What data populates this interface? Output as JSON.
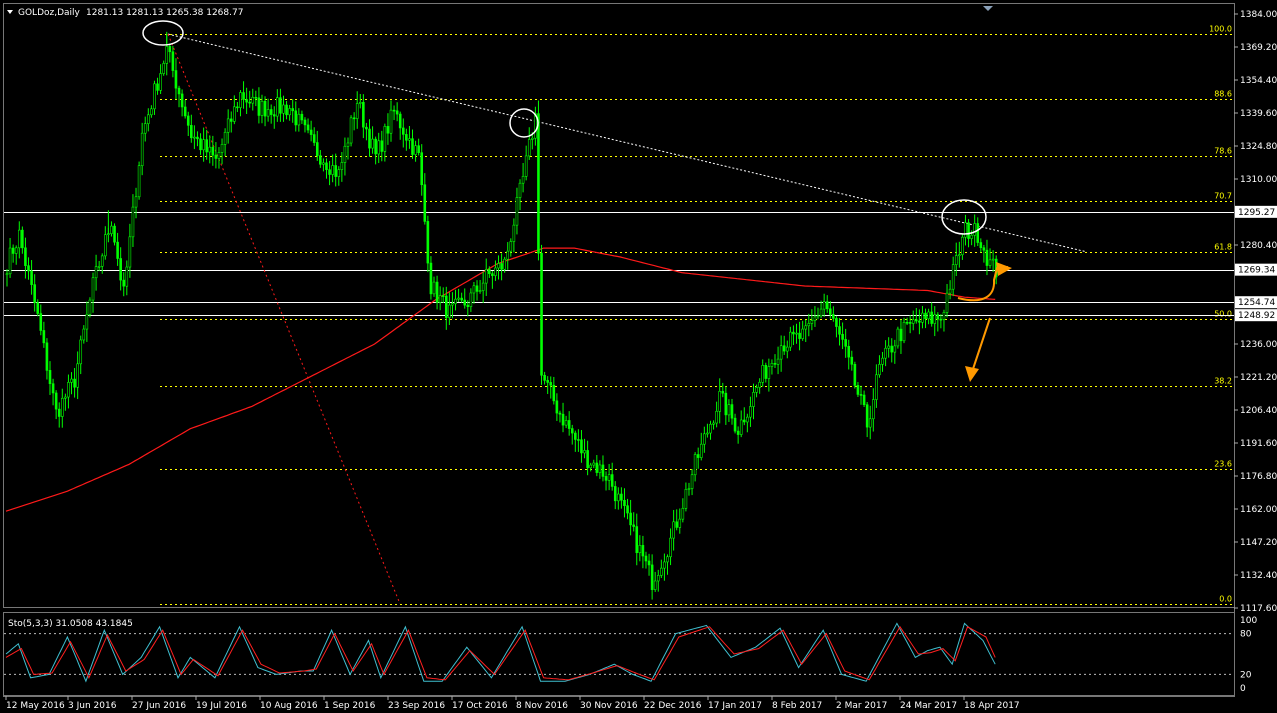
{
  "header": {
    "symbol_label": "GOLDoz,Daily",
    "ohlc": "1281.13 1281.13 1265.38 1268.77",
    "indicator_label": "Sto(5,3,3) 31.0508 43.1845"
  },
  "colors": {
    "background": "#000000",
    "candle": "#00ff00",
    "ma": "#ff1a1a",
    "fib": "#ffff00",
    "trendline": "#ffffff",
    "stoch_main": "#3fbfd0",
    "stoch_signal": "#ff2020",
    "annotation": "#ff9900"
  },
  "chart_data": [
    {
      "type": "line",
      "ylim": [
        1117.6,
        1384.0
      ],
      "y_ticks": [
        {
          "value": 1384.0,
          "label": "1384.00"
        },
        {
          "value": 1369.2,
          "label": "1369.20"
        },
        {
          "value": 1354.4,
          "label": "1354.40"
        },
        {
          "value": 1339.6,
          "label": "1339.60"
        },
        {
          "value": 1324.8,
          "label": "1324.80"
        },
        {
          "value": 1310.0,
          "label": "1310.00"
        },
        {
          "value": 1280.4,
          "label": "1280.40"
        },
        {
          "value": 1236.0,
          "label": "1236.00"
        },
        {
          "value": 1221.2,
          "label": "1221.20"
        },
        {
          "value": 1206.4,
          "label": "1206.40"
        },
        {
          "value": 1191.6,
          "label": "1191.60"
        },
        {
          "value": 1176.8,
          "label": "1176.80"
        },
        {
          "value": 1162.0,
          "label": "1162.00"
        },
        {
          "value": 1147.2,
          "label": "1147.20"
        },
        {
          "value": 1132.4,
          "label": "1132.40"
        },
        {
          "value": 1117.6,
          "label": "1117.60"
        }
      ],
      "x_ticks": [
        "12 May 2016",
        "3 Jun 2016",
        "27 Jun 2016",
        "19 Jul 2016",
        "10 Aug 2016",
        "1 Sep 2016",
        "23 Sep 2016",
        "17 Oct 2016",
        "8 Nov 2016",
        "30 Nov 2016",
        "22 Dec 2016",
        "17 Jan 2017",
        "8 Feb 2017",
        "2 Mar 2017",
        "24 Mar 2017",
        "18 Apr 2017"
      ],
      "fibonacci_levels": [
        {
          "label": "100.0",
          "value": 1375.0
        },
        {
          "label": "88.6",
          "value": 1345.9
        },
        {
          "label": "78.6",
          "value": 1320.3
        },
        {
          "label": "70.7",
          "value": 1300.1
        },
        {
          "label": "61.8",
          "value": 1277.4
        },
        {
          "label": "50.0",
          "value": 1247.2
        },
        {
          "label": "38.2",
          "value": 1217.1
        },
        {
          "label": "23.6",
          "value": 1179.8
        },
        {
          "label": "0.0",
          "value": 1119.5
        }
      ],
      "horizontal_lines": [
        {
          "label": "1295.27",
          "value": 1295.27,
          "highlight": false
        },
        {
          "label": "1269.34",
          "value": 1269.34,
          "highlight": true
        },
        {
          "label": "1254.74",
          "value": 1254.74,
          "highlight": false
        },
        {
          "label": "1248.92",
          "value": 1248.92,
          "highlight": false
        }
      ],
      "price_keypoints": [
        [
          0,
          1272
        ],
        [
          4,
          1285
        ],
        [
          10,
          1248
        ],
        [
          16,
          1205
        ],
        [
          22,
          1220
        ],
        [
          28,
          1262
        ],
        [
          34,
          1292
        ],
        [
          38,
          1258
        ],
        [
          44,
          1330
        ],
        [
          52,
          1368
        ],
        [
          60,
          1330
        ],
        [
          68,
          1318
        ],
        [
          76,
          1348
        ],
        [
          82,
          1342
        ],
        [
          92,
          1342
        ],
        [
          100,
          1324
        ],
        [
          108,
          1312
        ],
        [
          114,
          1345
        ],
        [
          120,
          1320
        ],
        [
          126,
          1340
        ],
        [
          134,
          1320
        ],
        [
          138,
          1262
        ],
        [
          144,
          1250
        ],
        [
          150,
          1255
        ],
        [
          156,
          1266
        ],
        [
          162,
          1272
        ],
        [
          168,
          1310
        ],
        [
          172,
          1338
        ],
        [
          174,
          1222
        ],
        [
          180,
          1205
        ],
        [
          188,
          1186
        ],
        [
          196,
          1176
        ],
        [
          204,
          1150
        ],
        [
          210,
          1130
        ],
        [
          216,
          1148
        ],
        [
          224,
          1182
        ],
        [
          232,
          1212
        ],
        [
          238,
          1198
        ],
        [
          246,
          1222
        ],
        [
          252,
          1236
        ],
        [
          260,
          1240
        ],
        [
          266,
          1255
        ],
        [
          272,
          1236
        ],
        [
          280,
          1200
        ],
        [
          284,
          1225
        ],
        [
          290,
          1240
        ],
        [
          296,
          1246
        ],
        [
          304,
          1248
        ],
        [
          308,
          1268
        ],
        [
          312,
          1287
        ],
        [
          316,
          1286
        ],
        [
          320,
          1272
        ],
        [
          322,
          1269
        ]
      ],
      "ma_keypoints": [
        [
          0,
          1161
        ],
        [
          20,
          1170
        ],
        [
          40,
          1182
        ],
        [
          60,
          1198
        ],
        [
          80,
          1208
        ],
        [
          100,
          1222
        ],
        [
          120,
          1236
        ],
        [
          140,
          1256
        ],
        [
          160,
          1272
        ],
        [
          175,
          1279
        ],
        [
          185,
          1279
        ],
        [
          200,
          1275
        ],
        [
          220,
          1268
        ],
        [
          240,
          1265
        ],
        [
          260,
          1262
        ],
        [
          280,
          1261
        ],
        [
          300,
          1260
        ],
        [
          312,
          1257
        ],
        [
          322,
          1256
        ]
      ]
    },
    {
      "type": "line",
      "title": "Sto(5,3,3) 31.0508 43.1845",
      "ylim": [
        0,
        100
      ],
      "y_ticks": [
        {
          "value": 100,
          "label": "100"
        },
        {
          "value": 80,
          "label": "80"
        },
        {
          "value": 20,
          "label": "20"
        },
        {
          "value": 0,
          "label": "0"
        }
      ],
      "stoch_main_keypoints": [
        [
          0,
          50
        ],
        [
          4,
          65
        ],
        [
          8,
          15
        ],
        [
          14,
          20
        ],
        [
          20,
          75
        ],
        [
          26,
          10
        ],
        [
          32,
          85
        ],
        [
          38,
          20
        ],
        [
          44,
          45
        ],
        [
          50,
          90
        ],
        [
          56,
          15
        ],
        [
          60,
          45
        ],
        [
          68,
          15
        ],
        [
          76,
          90
        ],
        [
          82,
          30
        ],
        [
          88,
          20
        ],
        [
          96,
          25
        ],
        [
          100,
          25
        ],
        [
          106,
          85
        ],
        [
          112,
          20
        ],
        [
          118,
          70
        ],
        [
          122,
          15
        ],
        [
          130,
          90
        ],
        [
          136,
          10
        ],
        [
          142,
          10
        ],
        [
          150,
          60
        ],
        [
          158,
          15
        ],
        [
          168,
          90
        ],
        [
          174,
          10
        ],
        [
          182,
          10
        ],
        [
          190,
          20
        ],
        [
          198,
          35
        ],
        [
          204,
          20
        ],
        [
          210,
          10
        ],
        [
          218,
          80
        ],
        [
          228,
          92
        ],
        [
          236,
          45
        ],
        [
          244,
          60
        ],
        [
          252,
          88
        ],
        [
          258,
          30
        ],
        [
          266,
          85
        ],
        [
          272,
          20
        ],
        [
          280,
          10
        ],
        [
          290,
          95
        ],
        [
          296,
          45
        ],
        [
          300,
          55
        ],
        [
          304,
          60
        ],
        [
          308,
          35
        ],
        [
          312,
          95
        ],
        [
          318,
          70
        ],
        [
          322,
          35
        ]
      ],
      "stoch_signal_keypoints": [
        [
          0,
          45
        ],
        [
          5,
          58
        ],
        [
          9,
          20
        ],
        [
          15,
          22
        ],
        [
          21,
          68
        ],
        [
          27,
          15
        ],
        [
          33,
          78
        ],
        [
          39,
          25
        ],
        [
          45,
          42
        ],
        [
          51,
          85
        ],
        [
          57,
          20
        ],
        [
          61,
          42
        ],
        [
          69,
          18
        ],
        [
          77,
          85
        ],
        [
          83,
          35
        ],
        [
          89,
          22
        ],
        [
          97,
          25
        ],
        [
          101,
          28
        ],
        [
          107,
          80
        ],
        [
          113,
          25
        ],
        [
          119,
          65
        ],
        [
          123,
          20
        ],
        [
          131,
          85
        ],
        [
          137,
          15
        ],
        [
          143,
          12
        ],
        [
          151,
          55
        ],
        [
          159,
          20
        ],
        [
          169,
          85
        ],
        [
          175,
          15
        ],
        [
          183,
          12
        ],
        [
          191,
          22
        ],
        [
          199,
          33
        ],
        [
          205,
          22
        ],
        [
          211,
          12
        ],
        [
          219,
          75
        ],
        [
          229,
          90
        ],
        [
          237,
          50
        ],
        [
          245,
          58
        ],
        [
          253,
          85
        ],
        [
          259,
          35
        ],
        [
          267,
          80
        ],
        [
          273,
          25
        ],
        [
          281,
          12
        ],
        [
          291,
          90
        ],
        [
          297,
          50
        ],
        [
          301,
          52
        ],
        [
          305,
          58
        ],
        [
          309,
          40
        ],
        [
          313,
          90
        ],
        [
          319,
          75
        ],
        [
          322,
          45
        ]
      ]
    }
  ]
}
